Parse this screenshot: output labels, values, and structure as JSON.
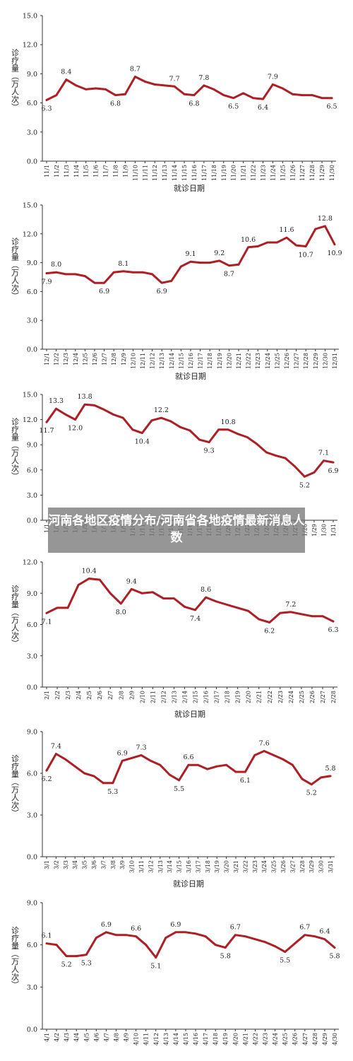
{
  "overlay": {
    "title": "河南各地区疫情分布/河南省各地疫情最新消息人数"
  },
  "colors": {
    "line": "#b01e23",
    "axis": "#333333"
  },
  "chart_data": [
    {
      "type": "line",
      "title": "",
      "ylabel": "诊疗量（万人次）",
      "xlabel": "就诊日期",
      "ylim": [
        0,
        15
      ],
      "yticks": [
        "0.0",
        "3.0",
        "6.0",
        "9.0",
        "12.0",
        "15.0"
      ],
      "categories": [
        "11/1",
        "11/2",
        "11/3",
        "11/4",
        "11/5",
        "11/6",
        "11/7",
        "11/8",
        "11/9",
        "11/10",
        "11/11",
        "11/12",
        "11/13",
        "11/14",
        "11/15",
        "11/16",
        "11/17",
        "11/18",
        "11/19",
        "11/20",
        "11/21",
        "11/22",
        "11/23",
        "11/24",
        "11/25",
        "11/26",
        "11/27",
        "11/28",
        "11/29",
        "11/30"
      ],
      "values": [
        6.3,
        6.8,
        8.4,
        7.8,
        7.4,
        7.5,
        7.4,
        6.8,
        6.9,
        8.7,
        8.2,
        7.9,
        7.8,
        7.7,
        6.9,
        6.8,
        7.8,
        7.4,
        6.8,
        6.5,
        7.0,
        6.5,
        6.4,
        7.9,
        7.5,
        6.9,
        6.8,
        6.8,
        6.5,
        6.5
      ],
      "labels": [
        {
          "i": 0,
          "text": "6.3",
          "pos": "below"
        },
        {
          "i": 2,
          "text": "8.4",
          "pos": "above"
        },
        {
          "i": 7,
          "text": "6.8",
          "pos": "below"
        },
        {
          "i": 9,
          "text": "8.7",
          "pos": "above"
        },
        {
          "i": 13,
          "text": "7.7",
          "pos": "above"
        },
        {
          "i": 15,
          "text": "6.8",
          "pos": "below"
        },
        {
          "i": 16,
          "text": "7.8",
          "pos": "above"
        },
        {
          "i": 19,
          "text": "6.5",
          "pos": "below"
        },
        {
          "i": 22,
          "text": "6.4",
          "pos": "below"
        },
        {
          "i": 23,
          "text": "7.9",
          "pos": "above"
        },
        {
          "i": 29,
          "text": "6.5",
          "pos": "below"
        }
      ]
    },
    {
      "type": "line",
      "title": "",
      "ylabel": "诊疗量（万人次）",
      "xlabel": "就诊日期",
      "ylim": [
        0,
        15
      ],
      "yticks": [
        "0.0",
        "3.0",
        "6.0",
        "9.0",
        "12.0",
        "15.0"
      ],
      "categories": [
        "12/1",
        "12/2",
        "12/3",
        "12/4",
        "12/5",
        "12/6",
        "12/7",
        "12/8",
        "12/9",
        "12/10",
        "12/11",
        "12/12",
        "12/13",
        "12/14",
        "12/15",
        "12/16",
        "12/17",
        "12/18",
        "12/19",
        "12/20",
        "12/21",
        "12/22",
        "12/23",
        "12/24",
        "12/25",
        "12/26",
        "12/27",
        "12/28",
        "12/29",
        "12/30",
        "12/31"
      ],
      "values": [
        7.9,
        8.0,
        7.8,
        7.8,
        7.6,
        6.9,
        6.9,
        8.0,
        8.1,
        8.0,
        8.0,
        7.8,
        6.9,
        7.1,
        8.6,
        9.1,
        9.0,
        9.0,
        9.2,
        8.7,
        8.8,
        10.6,
        10.7,
        11.1,
        11.1,
        11.6,
        10.8,
        10.7,
        12.5,
        12.8,
        10.9
      ],
      "labels": [
        {
          "i": 0,
          "text": "7.9",
          "pos": "below"
        },
        {
          "i": 1,
          "text": "8.0",
          "pos": "above"
        },
        {
          "i": 6,
          "text": "6.9",
          "pos": "below"
        },
        {
          "i": 8,
          "text": "8.1",
          "pos": "above"
        },
        {
          "i": 12,
          "text": "6.9",
          "pos": "below"
        },
        {
          "i": 15,
          "text": "9.1",
          "pos": "above"
        },
        {
          "i": 18,
          "text": "9.2",
          "pos": "above"
        },
        {
          "i": 19,
          "text": "8.7",
          "pos": "below"
        },
        {
          "i": 21,
          "text": "10.6",
          "pos": "above"
        },
        {
          "i": 25,
          "text": "11.6",
          "pos": "above"
        },
        {
          "i": 27,
          "text": "10.7",
          "pos": "below"
        },
        {
          "i": 29,
          "text": "12.8",
          "pos": "above"
        },
        {
          "i": 30,
          "text": "10.9",
          "pos": "below"
        }
      ]
    },
    {
      "type": "line",
      "title": "",
      "ylabel": "诊疗量（万人次）",
      "xlabel": "",
      "ylim": [
        0,
        15
      ],
      "yticks": [
        "0.0",
        "3.0",
        "6.0",
        "9.0",
        "12.0",
        "15.0"
      ],
      "categories": [
        "1/1",
        "1/2",
        "1/3",
        "1/4",
        "1/5",
        "1/6",
        "1/7",
        "1/8",
        "1/9",
        "1/10",
        "1/11",
        "1/12",
        "1/13",
        "1/14",
        "1/15",
        "1/16",
        "1/17",
        "1/18",
        "1/19",
        "1/20",
        "1/21",
        "1/22",
        "1/23",
        "1/24",
        "1/25",
        "1/26",
        "1/27",
        "1/28",
        "1/29",
        "1/30",
        "1/31"
      ],
      "values": [
        11.7,
        13.3,
        12.6,
        12.0,
        13.8,
        13.7,
        13.2,
        12.6,
        12.2,
        10.8,
        10.4,
        11.9,
        12.2,
        11.8,
        11.1,
        10.7,
        9.6,
        9.3,
        10.8,
        10.8,
        10.3,
        9.9,
        9.1,
        8.1,
        7.7,
        7.4,
        6.4,
        5.2,
        5.7,
        7.1,
        6.9
      ],
      "labels": [
        {
          "i": 0,
          "text": "11.7",
          "pos": "below"
        },
        {
          "i": 1,
          "text": "13.3",
          "pos": "above"
        },
        {
          "i": 3,
          "text": "12.0",
          "pos": "below"
        },
        {
          "i": 4,
          "text": "13.8",
          "pos": "above"
        },
        {
          "i": 10,
          "text": "10.4",
          "pos": "below"
        },
        {
          "i": 12,
          "text": "12.2",
          "pos": "above"
        },
        {
          "i": 17,
          "text": "9.3",
          "pos": "below"
        },
        {
          "i": 19,
          "text": "10.8",
          "pos": "above"
        },
        {
          "i": 27,
          "text": "5.2",
          "pos": "below"
        },
        {
          "i": 29,
          "text": "7.1",
          "pos": "above"
        },
        {
          "i": 30,
          "text": "6.9",
          "pos": "below"
        }
      ]
    },
    {
      "type": "line",
      "title": "",
      "ylabel": "诊疗量（万人次）",
      "xlabel": "就诊日期",
      "ylim": [
        0,
        12
      ],
      "yticks": [
        "0.0",
        "3.0",
        "6.0",
        "9.0",
        "12.0"
      ],
      "categories": [
        "2/1",
        "2/2",
        "2/3",
        "2/4",
        "2/5",
        "2/6",
        "2/7",
        "2/8",
        "2/9",
        "2/10",
        "2/11",
        "2/12",
        "2/13",
        "2/14",
        "2/15",
        "2/16",
        "2/17",
        "2/18",
        "2/19",
        "2/20",
        "2/21",
        "2/22",
        "2/23",
        "2/24",
        "2/25",
        "2/26",
        "2/27",
        "2/28"
      ],
      "values": [
        7.1,
        7.6,
        7.6,
        9.8,
        10.4,
        10.3,
        9.0,
        8.0,
        9.4,
        9.0,
        9.1,
        8.5,
        8.5,
        7.7,
        7.4,
        8.6,
        8.2,
        7.9,
        7.6,
        7.3,
        6.5,
        6.2,
        7.1,
        7.2,
        7.0,
        6.8,
        6.8,
        6.3
      ],
      "labels": [
        {
          "i": 0,
          "text": "7.1",
          "pos": "below"
        },
        {
          "i": 4,
          "text": "10.4",
          "pos": "above"
        },
        {
          "i": 7,
          "text": "8.0",
          "pos": "below"
        },
        {
          "i": 8,
          "text": "9.4",
          "pos": "above"
        },
        {
          "i": 14,
          "text": "7.4",
          "pos": "below"
        },
        {
          "i": 15,
          "text": "8.6",
          "pos": "above"
        },
        {
          "i": 21,
          "text": "6.2",
          "pos": "below"
        },
        {
          "i": 23,
          "text": "7.2",
          "pos": "above"
        },
        {
          "i": 27,
          "text": "6.3",
          "pos": "below"
        }
      ]
    },
    {
      "type": "line",
      "title": "",
      "ylabel": "诊疗量（万人次）",
      "xlabel": "就诊日期",
      "ylim": [
        0,
        9
      ],
      "yticks": [
        "0.0",
        "3.0",
        "6.0",
        "9.0"
      ],
      "categories": [
        "3/1",
        "3/2",
        "3/3",
        "3/4",
        "3/5",
        "3/6",
        "3/7",
        "3/8",
        "3/9",
        "3/10",
        "3/11",
        "3/12",
        "3/13",
        "3/14",
        "3/15",
        "3/16",
        "3/17",
        "3/18",
        "3/19",
        "3/20",
        "3/21",
        "3/22",
        "3/23",
        "3/24",
        "3/25",
        "3/26",
        "3/27",
        "3/28",
        "3/29",
        "3/30",
        "3/31"
      ],
      "values": [
        6.2,
        7.4,
        7.0,
        6.5,
        6.0,
        5.8,
        5.3,
        5.3,
        6.9,
        7.1,
        7.3,
        6.9,
        6.6,
        5.9,
        5.5,
        6.6,
        6.6,
        6.3,
        6.5,
        6.6,
        6.1,
        6.1,
        7.3,
        7.6,
        7.3,
        7.0,
        6.6,
        5.6,
        5.2,
        5.7,
        5.8
      ],
      "labels": [
        {
          "i": 0,
          "text": "6.2",
          "pos": "below"
        },
        {
          "i": 1,
          "text": "7.4",
          "pos": "above"
        },
        {
          "i": 7,
          "text": "5.3",
          "pos": "below"
        },
        {
          "i": 8,
          "text": "6.9",
          "pos": "above"
        },
        {
          "i": 10,
          "text": "7.3",
          "pos": "above"
        },
        {
          "i": 14,
          "text": "5.5",
          "pos": "below"
        },
        {
          "i": 15,
          "text": "6.6",
          "pos": "above"
        },
        {
          "i": 21,
          "text": "6.1",
          "pos": "below"
        },
        {
          "i": 23,
          "text": "7.6",
          "pos": "above"
        },
        {
          "i": 28,
          "text": "5.2",
          "pos": "below"
        },
        {
          "i": 30,
          "text": "5.8",
          "pos": "above"
        }
      ]
    },
    {
      "type": "line",
      "title": "",
      "ylabel": "诊疗量（万人次）",
      "xlabel": "",
      "ylim": [
        0,
        9
      ],
      "yticks": [
        "0.0",
        "3.0",
        "6.0",
        "9.0"
      ],
      "categories": [
        "4/1",
        "4/2",
        "4/3",
        "4/4",
        "4/5",
        "4/6",
        "4/7",
        "4/8",
        "4/9",
        "4/10",
        "4/11",
        "4/12",
        "4/13",
        "4/14",
        "4/15",
        "4/16",
        "4/17",
        "4/18",
        "4/19",
        "4/20",
        "4/21",
        "4/22",
        "4/23",
        "4/24",
        "4/25",
        "4/26",
        "4/27",
        "4/28",
        "4/29",
        "4/30"
      ],
      "values": [
        6.1,
        6.0,
        5.2,
        5.2,
        5.3,
        6.5,
        6.9,
        6.7,
        6.7,
        6.6,
        6.0,
        5.1,
        6.5,
        6.9,
        6.9,
        6.8,
        6.6,
        6.0,
        5.8,
        6.7,
        6.6,
        6.4,
        6.2,
        5.9,
        5.5,
        6.1,
        6.7,
        6.6,
        6.4,
        5.8
      ],
      "labels": [
        {
          "i": 0,
          "text": "6.1",
          "pos": "above"
        },
        {
          "i": 2,
          "text": "5.2",
          "pos": "below"
        },
        {
          "i": 4,
          "text": "5.3",
          "pos": "below"
        },
        {
          "i": 6,
          "text": "6.9",
          "pos": "above"
        },
        {
          "i": 9,
          "text": "6.6",
          "pos": "above"
        },
        {
          "i": 11,
          "text": "5.1",
          "pos": "below"
        },
        {
          "i": 13,
          "text": "6.9",
          "pos": "above"
        },
        {
          "i": 18,
          "text": "5.8",
          "pos": "below"
        },
        {
          "i": 19,
          "text": "6.7",
          "pos": "above"
        },
        {
          "i": 24,
          "text": "5.5",
          "pos": "below"
        },
        {
          "i": 26,
          "text": "6.7",
          "pos": "above"
        },
        {
          "i": 28,
          "text": "6.4",
          "pos": "above"
        },
        {
          "i": 29,
          "text": "5.8",
          "pos": "below"
        }
      ]
    }
  ]
}
